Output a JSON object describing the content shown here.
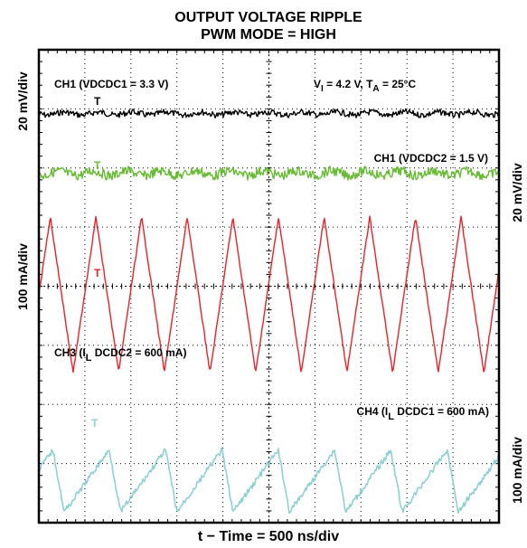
{
  "chart_data": {
    "type": "line",
    "title": "OUTPUT VOLTAGE RIPPLE",
    "subtitle": "PWM MODE = HIGH",
    "xlabel": "t − Time = 500 ns/div",
    "left_axis_labels": [
      "20 mV/div",
      "100 mA/div"
    ],
    "right_axis_labels": [
      "20 mV/div",
      "100 mA/div"
    ],
    "grid": true,
    "divisions": {
      "x": 10,
      "y": 8
    },
    "conditions": {
      "vi": {
        "sym": "V",
        "sub": "I",
        "rest": " = 4.2 V,  "
      },
      "ta": {
        "sym": "T",
        "sub": "A",
        "rest": " = 25°C"
      }
    },
    "series": [
      {
        "name": "CH1 (VDCDC1 = 3.3 V)",
        "label_main": "CH1 (VDCDC1 = 3.3 V)",
        "color": "#000000",
        "waveform": "noise",
        "baseline_div": 1.08,
        "amplitude_div": 0.05
      },
      {
        "name": "CH1 (VDCDC2 = 1.5 V)",
        "label_main": "CH1 (VDCDC2 = 1.5 V)",
        "color": "#66bb33",
        "waveform": "noise",
        "baseline_div": 2.09,
        "amplitude_div": 0.08
      },
      {
        "name": "CH3 (IL DCDC2 = 600 mA)",
        "label_pre": "CH3 (I",
        "label_sub": "L",
        "label_post": " DCDC2 = 600 mA)",
        "color": "#e8222a",
        "waveform": "triangle",
        "period_ns": 496,
        "peak_div": 2.83,
        "valley_div": 5.46
      },
      {
        "name": "CH4 (IL DCDC1 = 600 mA)",
        "label_pre": "CH4 (I",
        "label_sub": "L",
        "label_post": " DCDC1 = 600 mA)",
        "color": "#8fd0d4",
        "waveform": "sawtooth",
        "period_ns": 612,
        "peak_div": 6.77,
        "valley_div": 7.82
      }
    ],
    "markers": [
      "T",
      "T",
      "T",
      "T"
    ]
  }
}
